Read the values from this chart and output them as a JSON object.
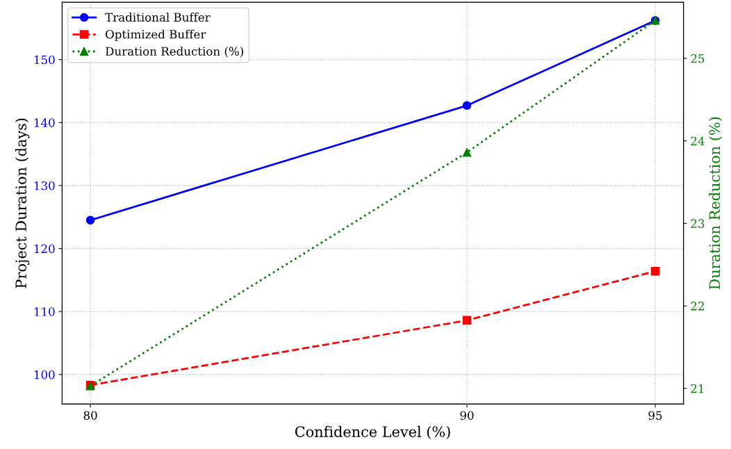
{
  "chart_data": {
    "type": "line",
    "xlabel": "Confidence Level (%)",
    "ylabel": "Project Duration (days)",
    "y2label": "Duration Reduction (%)",
    "x": [
      80,
      90,
      95
    ],
    "xlim": [
      79.25,
      95.75
    ],
    "xticks": [
      80,
      90,
      95
    ],
    "ylim": [
      95.3,
      159.1
    ],
    "yticks": [
      100,
      110,
      120,
      130,
      140,
      150
    ],
    "y2lim": [
      20.81,
      25.68
    ],
    "y2ticks": [
      21,
      22,
      23,
      24,
      25
    ],
    "grid": true,
    "legend": "top left",
    "series": [
      {
        "name": "Traditional Buffer",
        "color": "#0000ff",
        "values": [
          124.5,
          142.7,
          156.2
        ],
        "marker": "circle",
        "line_style": "solid"
      },
      {
        "name": "Optimized Buffer",
        "color": "#ff0000",
        "values": [
          98.3,
          108.6,
          116.4
        ],
        "marker": "square",
        "line_style": "dashed"
      },
      {
        "name": "Duration Reduction (%)",
        "color": "#008000",
        "values": [
          21.03,
          23.86,
          25.46
        ],
        "marker": "triangle",
        "line_style": "dotted",
        "axis": "y2"
      }
    ]
  }
}
